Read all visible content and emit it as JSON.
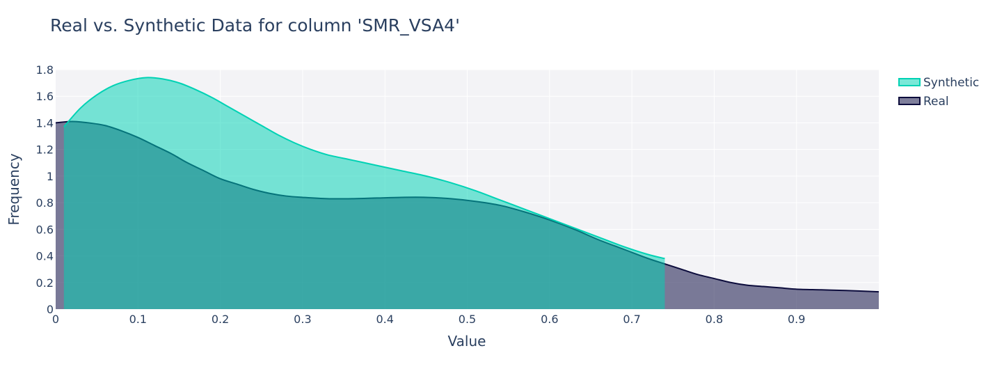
{
  "chart_data": {
    "type": "area",
    "title": "Real vs. Synthetic Data for column 'SMR_VSA4'",
    "xlabel": "Value",
    "ylabel": "Frequency",
    "xlim": [
      0,
      1.0
    ],
    "ylim": [
      0,
      1.8
    ],
    "x_ticks": [
      0,
      0.1,
      0.2,
      0.3,
      0.4,
      0.5,
      0.6,
      0.7,
      0.8,
      0.9
    ],
    "x_tick_labels": [
      "0",
      "0.1",
      "0.2",
      "0.3",
      "0.4",
      "0.5",
      "0.6",
      "0.7",
      "0.8",
      "0.9"
    ],
    "y_ticks": [
      0,
      0.2,
      0.4,
      0.6,
      0.8,
      1.0,
      1.2,
      1.4,
      1.6,
      1.8
    ],
    "y_tick_labels": [
      "0",
      "0.2",
      "0.4",
      "0.6",
      "0.8",
      "1",
      "1.2",
      "1.4",
      "1.6",
      "1.8"
    ],
    "grid": true,
    "legend_position": "top-right",
    "series": [
      {
        "name": "Synthetic",
        "color": "#00d2b4",
        "fill": "rgba(0,210,180,0.52)",
        "x": [
          0.01,
          0.03,
          0.05,
          0.07,
          0.09,
          0.11,
          0.13,
          0.15,
          0.17,
          0.19,
          0.21,
          0.23,
          0.25,
          0.27,
          0.29,
          0.31,
          0.33,
          0.36,
          0.39,
          0.42,
          0.45,
          0.48,
          0.51,
          0.54,
          0.57,
          0.6,
          0.63,
          0.66,
          0.69,
          0.72,
          0.74
        ],
        "y": [
          1.37,
          1.51,
          1.61,
          1.68,
          1.72,
          1.74,
          1.73,
          1.7,
          1.65,
          1.59,
          1.52,
          1.45,
          1.38,
          1.31,
          1.25,
          1.2,
          1.16,
          1.12,
          1.08,
          1.04,
          1.0,
          0.95,
          0.89,
          0.82,
          0.75,
          0.68,
          0.61,
          0.54,
          0.47,
          0.41,
          0.38
        ]
      },
      {
        "name": "Real",
        "color": "#0c0c3c",
        "fill": "rgba(28,28,80,0.57)",
        "x": [
          0.0,
          0.02,
          0.04,
          0.06,
          0.08,
          0.1,
          0.12,
          0.14,
          0.16,
          0.18,
          0.2,
          0.22,
          0.24,
          0.26,
          0.28,
          0.3,
          0.33,
          0.36,
          0.39,
          0.42,
          0.45,
          0.48,
          0.51,
          0.54,
          0.57,
          0.6,
          0.63,
          0.66,
          0.69,
          0.72,
          0.74,
          0.76,
          0.78,
          0.8,
          0.82,
          0.84,
          0.86,
          0.88,
          0.9,
          0.93,
          0.96,
          1.0
        ],
        "y": [
          1.4,
          1.41,
          1.4,
          1.38,
          1.34,
          1.29,
          1.23,
          1.17,
          1.1,
          1.04,
          0.98,
          0.94,
          0.9,
          0.87,
          0.85,
          0.84,
          0.83,
          0.83,
          0.835,
          0.84,
          0.84,
          0.83,
          0.81,
          0.78,
          0.73,
          0.67,
          0.6,
          0.52,
          0.45,
          0.38,
          0.34,
          0.3,
          0.26,
          0.23,
          0.2,
          0.18,
          0.17,
          0.16,
          0.15,
          0.145,
          0.14,
          0.13
        ]
      }
    ]
  }
}
